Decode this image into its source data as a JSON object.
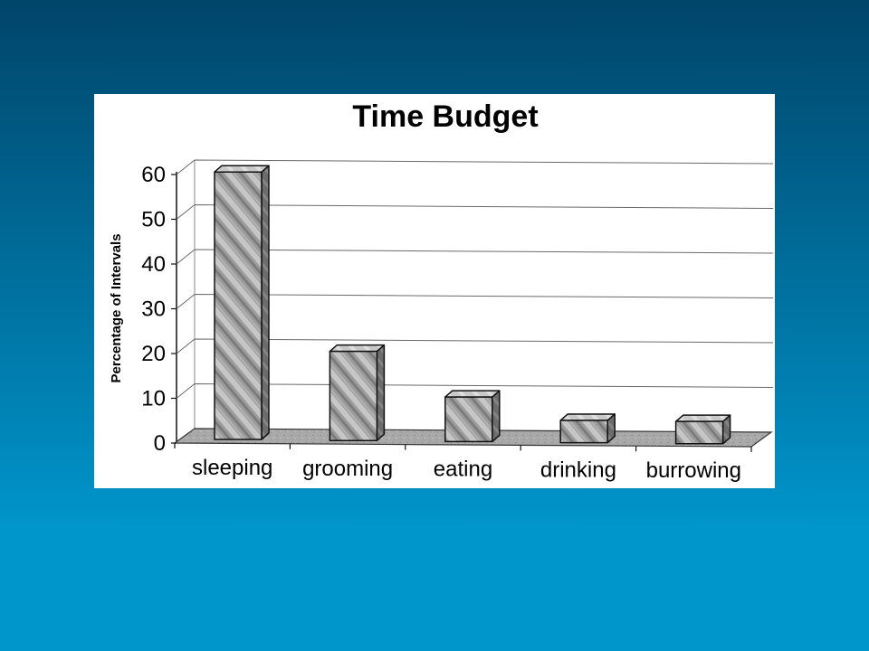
{
  "slide": {
    "background_top": "#00456a",
    "background_bottom": "#0096cc",
    "panel_color": "#ffffff"
  },
  "chart_data": {
    "type": "bar",
    "title": "Time Budget",
    "ylabel": "Percentage of Intervals",
    "categories": [
      "sleeping",
      "grooming",
      "eating",
      "drinking",
      "burrowing"
    ],
    "values": [
      60,
      20,
      10,
      5,
      5
    ],
    "ylim": [
      0,
      60
    ],
    "yticks": [
      0,
      10,
      20,
      30,
      40,
      50,
      60
    ],
    "grid": true,
    "bar_color": "#9c9c9c",
    "floor_color": "#a9a9a9"
  }
}
